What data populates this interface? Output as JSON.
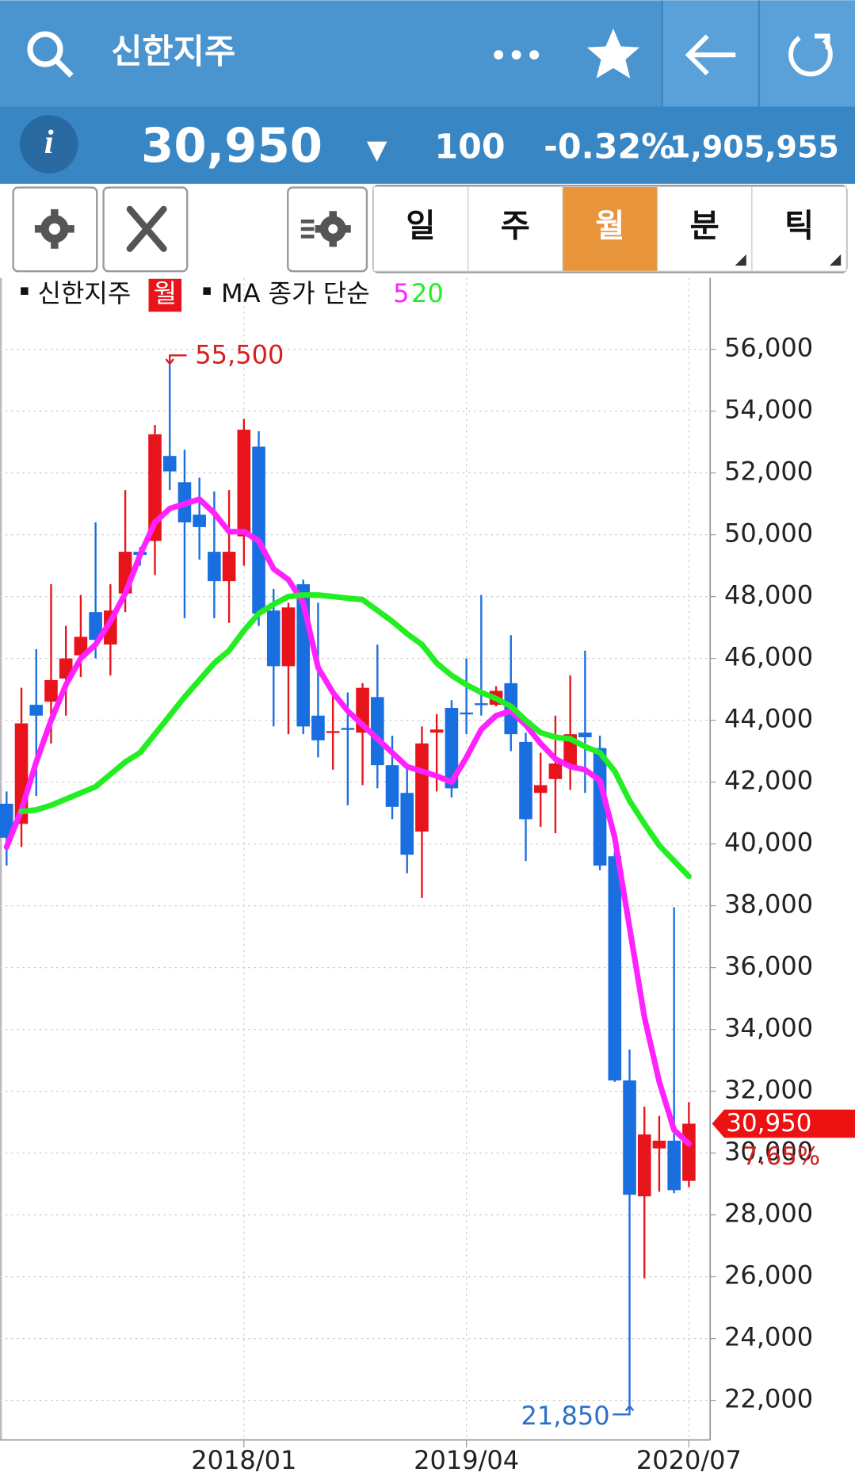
{
  "header": {
    "title": "신한지주",
    "price": "30,950",
    "change_sign": "▼",
    "change": "100",
    "change_pct": "-0.32%",
    "volume": "1,905,955"
  },
  "tabs": [
    "일",
    "주",
    "월",
    "분",
    "틱"
  ],
  "active_tab": 2,
  "chart_data": {
    "type": "candlestick",
    "period_label": "월",
    "ma_label": "MA 종가 단순",
    "categories": [
      null,
      null,
      null,
      null,
      null,
      null,
      null,
      null,
      null,
      null,
      null,
      null,
      null,
      null,
      null,
      null,
      "2018/01",
      null,
      null,
      null,
      null,
      null,
      null,
      null,
      null,
      null,
      null,
      null,
      null,
      null,
      null,
      "2019/04",
      null,
      null,
      null,
      null,
      null,
      null,
      null,
      null,
      null,
      null,
      null,
      null,
      null,
      null,
      "2020/07"
    ],
    "series": [
      {
        "name": "신한지주",
        "up_color": "#e8141c",
        "down_color": "#1a6fe0",
        "open": [
          41300,
          40650,
          44500,
          44600,
          45350,
          46100,
          47500,
          46450,
          48100,
          49450,
          49800,
          52550,
          51700,
          50650,
          49450,
          48500,
          49950,
          52850,
          47550,
          45750,
          48400,
          44150,
          43600,
          43750,
          43600,
          44750,
          42550,
          41650,
          40400,
          43600,
          44400,
          44250,
          44550,
          44500,
          45200,
          43300,
          41650,
          42100,
          42500,
          43600,
          43100,
          39600,
          32350,
          28600,
          30150,
          30400,
          29100
        ],
        "high": [
          41700,
          45050,
          46300,
          48400,
          47050,
          48050,
          50400,
          48400,
          51450,
          49600,
          53550,
          55500,
          52750,
          51850,
          51400,
          51450,
          53750,
          53350,
          48250,
          47800,
          48550,
          47800,
          44800,
          44900,
          45200,
          46450,
          43500,
          42550,
          43800,
          44200,
          44650,
          46000,
          48050,
          45100,
          46750,
          43600,
          42950,
          44150,
          45450,
          46250,
          43500,
          39750,
          33350,
          31500,
          31200,
          37950,
          31650
        ],
        "low": [
          39300,
          39900,
          41550,
          43250,
          44150,
          45400,
          46000,
          45450,
          47500,
          49000,
          48700,
          51450,
          47300,
          49200,
          47300,
          47150,
          49000,
          47050,
          43800,
          43550,
          43550,
          42800,
          42400,
          41250,
          41900,
          41800,
          40800,
          39050,
          38250,
          41700,
          41500,
          43550,
          44150,
          44450,
          43000,
          39450,
          40550,
          40350,
          41750,
          41650,
          39150,
          32300,
          21850,
          25950,
          28750,
          28700,
          28900
        ],
        "close": [
          40200,
          43900,
          44150,
          45300,
          46000,
          46700,
          46600,
          47550,
          49450,
          49350,
          53250,
          52050,
          50400,
          50250,
          48500,
          49450,
          53400,
          47450,
          45750,
          47650,
          43800,
          43350,
          43650,
          43700,
          45050,
          42550,
          41200,
          39650,
          43250,
          43700,
          41800,
          44200,
          44500,
          44950,
          43550,
          40800,
          41900,
          42600,
          43550,
          43450,
          39300,
          32350,
          28650,
          30600,
          30400,
          28800,
          30950
        ]
      }
    ],
    "moving_averages": [
      {
        "name": "5",
        "color": "#ff22ff",
        "values": [
          39900,
          41100,
          42650,
          44000,
          45150,
          46000,
          46450,
          47200,
          48100,
          49350,
          50400,
          50850,
          51000,
          51150,
          50700,
          50100,
          50100,
          49800,
          48900,
          48550,
          47800,
          45700,
          44900,
          44300,
          43850,
          43400,
          42950,
          42500,
          42350,
          42200,
          42000,
          42800,
          43700,
          44150,
          44300,
          43850,
          43250,
          42750,
          42500,
          42400,
          42050,
          40200,
          37300,
          34400,
          32300,
          30750,
          30300
        ]
      },
      {
        "name": "20",
        "color": "#22ee22",
        "values": [
          null,
          41050,
          41100,
          41250,
          41450,
          41650,
          41850,
          42250,
          42650,
          42950,
          43550,
          44150,
          44750,
          45300,
          45850,
          46250,
          46900,
          47450,
          47750,
          48000,
          48050,
          48050,
          48000,
          47950,
          47900,
          47550,
          47200,
          46800,
          46450,
          45850,
          45450,
          45150,
          44900,
          44700,
          44450,
          44000,
          43600,
          43450,
          43400,
          43150,
          42950,
          42350,
          41400,
          40650,
          39950,
          39450,
          38950
        ]
      }
    ],
    "ylim": [
      20720,
      58310
    ],
    "yticks": [
      {
        "value": 22000,
        "label": "22,000"
      },
      {
        "value": 24000,
        "label": "24,000"
      },
      {
        "value": 26000,
        "label": "26,000"
      },
      {
        "value": 28000,
        "label": "28,000"
      },
      {
        "value": 30000,
        "label": "30,000"
      },
      {
        "value": 32000,
        "label": "32,000"
      },
      {
        "value": 34000,
        "label": "34,000"
      },
      {
        "value": 36000,
        "label": "36,000"
      },
      {
        "value": 38000,
        "label": "38,000"
      },
      {
        "value": 40000,
        "label": "40,000"
      },
      {
        "value": 42000,
        "label": "42,000"
      },
      {
        "value": 44000,
        "label": "44,000"
      },
      {
        "value": 46000,
        "label": "46,000"
      },
      {
        "value": 48000,
        "label": "48,000"
      },
      {
        "value": 50000,
        "label": "50,000"
      },
      {
        "value": 52000,
        "label": "52,000"
      },
      {
        "value": 54000,
        "label": "54,000"
      },
      {
        "value": 56000,
        "label": "56,000"
      }
    ],
    "grid": true,
    "max_marker": {
      "value": 55500,
      "label": "55,500"
    },
    "min_marker": {
      "value": 21850,
      "label": "21,850"
    },
    "last_price": {
      "value": 30950,
      "label": "30,950",
      "note": "7.65%"
    }
  }
}
